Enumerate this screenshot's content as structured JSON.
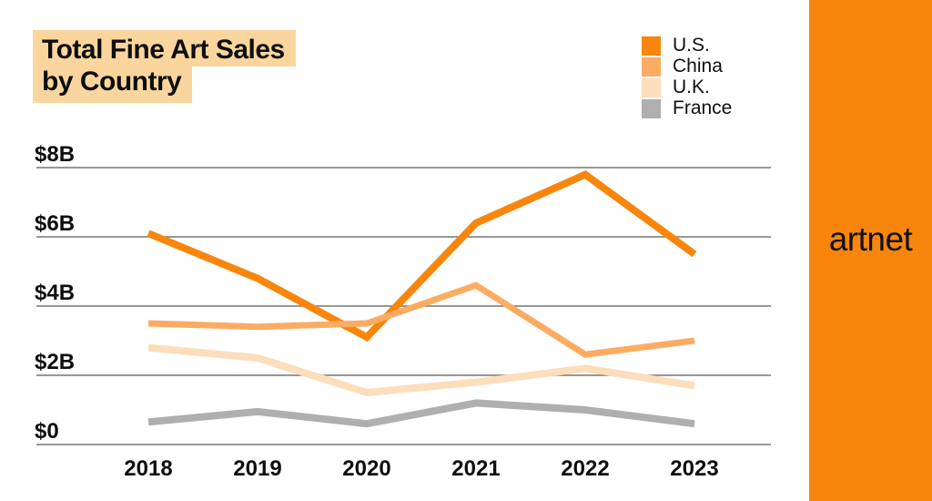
{
  "title": {
    "line1": "Total Fine Art Sales",
    "line2": "by Country",
    "highlight_color": "#FAD69E"
  },
  "legend": [
    {
      "label": "U.S.",
      "color": "#F8860D"
    },
    {
      "label": "China",
      "color": "#FBAC62"
    },
    {
      "label": "U.K.",
      "color": "#FCDEBC"
    },
    {
      "label": "France",
      "color": "#AFAFAF"
    }
  ],
  "brand": {
    "name": "artnet",
    "banner_color": "#F8860D",
    "text_color": "#101010"
  },
  "colors": {
    "gridline": "#757575",
    "axis_text": "#0E0E0E",
    "background": "#FFFFFF"
  },
  "chart_data": {
    "type": "line",
    "title": "Total Fine Art Sales by Country",
    "xlabel": "",
    "ylabel": "",
    "unit": "USD billions",
    "categories": [
      "2018",
      "2019",
      "2020",
      "2021",
      "2022",
      "2023"
    ],
    "series": [
      {
        "name": "U.S.",
        "color": "#F8860D",
        "values": [
          6.1,
          4.8,
          3.1,
          6.4,
          7.8,
          5.5
        ]
      },
      {
        "name": "China",
        "color": "#FBAC62",
        "values": [
          3.5,
          3.4,
          3.5,
          4.6,
          2.6,
          3.0
        ]
      },
      {
        "name": "U.K.",
        "color": "#FCDEBC",
        "values": [
          2.8,
          2.5,
          1.5,
          1.8,
          2.2,
          1.7
        ]
      },
      {
        "name": "France",
        "color": "#AFAFAF",
        "values": [
          0.65,
          0.95,
          0.6,
          1.2,
          1.0,
          0.6
        ]
      }
    ],
    "y_ticks": [
      {
        "value": 8,
        "label": "$8B"
      },
      {
        "value": 6,
        "label": "$6B"
      },
      {
        "value": 4,
        "label": "$4B"
      },
      {
        "value": 2,
        "label": "$2B"
      },
      {
        "value": 0,
        "label": "$0"
      }
    ],
    "ylim": [
      0,
      8.6
    ],
    "grid": true,
    "legend_position": "top-right"
  }
}
